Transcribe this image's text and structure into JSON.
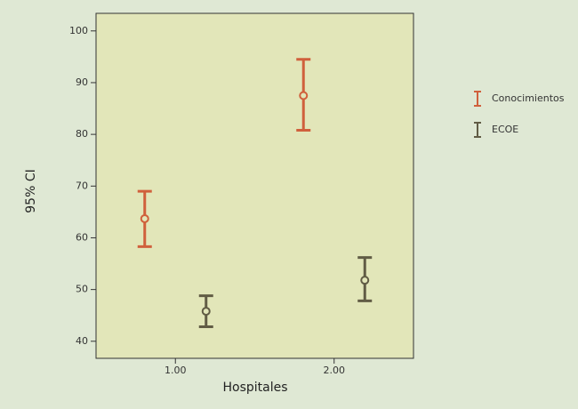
{
  "chart_data": {
    "type": "errorbar",
    "xlabel": "Hospitales",
    "ylabel": "95% CI",
    "categories": [
      "1.00",
      "2.00"
    ],
    "series": [
      {
        "name": "Conocimientos",
        "color": "#d0603c",
        "values": [
          63.7,
          87.5
        ],
        "low": [
          58.3,
          80.8
        ],
        "high": [
          69,
          94.5
        ]
      },
      {
        "name": "ECOE",
        "color": "#615c45",
        "values": [
          45.8,
          51.8
        ],
        "low": [
          42.8,
          47.8
        ],
        "high": [
          48.8,
          56.2
        ]
      }
    ],
    "ylim": [
      36.7,
      103.4
    ],
    "yticks": [
      40,
      50,
      60,
      70,
      80,
      90,
      100
    ],
    "legend": "right",
    "plot_background": "#e2e6b9"
  }
}
